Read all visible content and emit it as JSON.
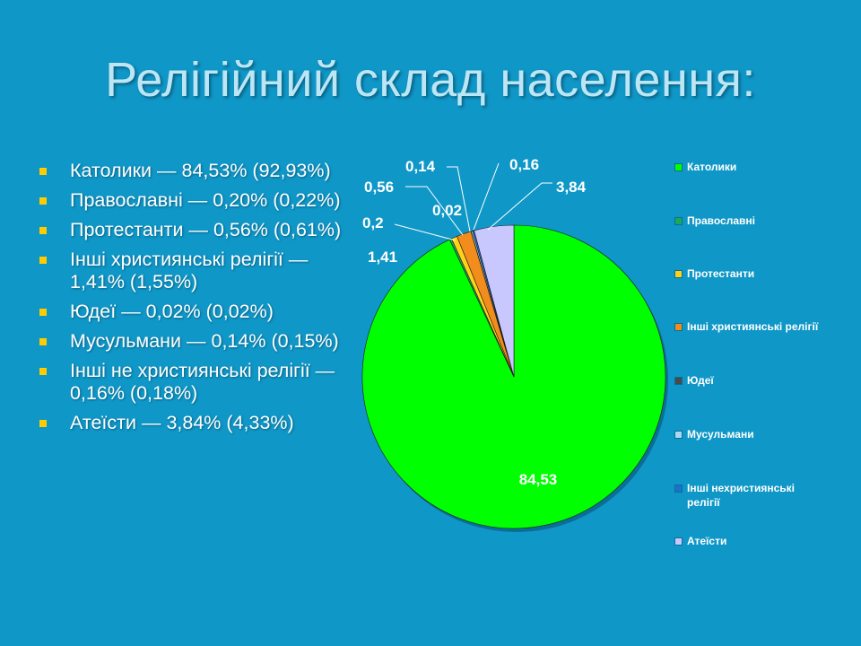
{
  "slide": {
    "title": "Релігійний склад населення:",
    "bullets": [
      "Католики — 84,53% (92,93%)",
      "Православні — 0,20% (0,22%)",
      "Протестанти — 0,56% (0,61%)",
      "Інші християнські релігії — 1,41% (1,55%)",
      "Юдеї — 0,02% (0,02%)",
      "Мусульмани — 0,14% (0,15%)",
      "Інші не християнські релігії — 0,16% (0,18%)",
      "Атеїсти — 3,84% (4,33%)"
    ]
  },
  "colors": {
    "background": "#0f97c7",
    "title": "#bde6f5",
    "bullet_marker": "#ffcc00"
  },
  "chart_data": {
    "type": "pie",
    "title": "",
    "legend_position": "right",
    "start_angle_deg": 0,
    "direction": "clockwise",
    "slices": [
      {
        "name": "Католики",
        "value": 84.53,
        "label": "84,53",
        "color": "#00ff00"
      },
      {
        "name": "Православні",
        "value": 0.2,
        "label": "0,2",
        "color": "#1aa85a"
      },
      {
        "name": "Протестанти",
        "value": 0.56,
        "label": "0,56",
        "color": "#ffd21a"
      },
      {
        "name": "Інші християнські релігії",
        "value": 1.41,
        "label": "1,41",
        "color": "#f28c1c"
      },
      {
        "name": "Юдеї",
        "value": 0.02,
        "label": "0,02",
        "color": "#4a4a4a"
      },
      {
        "name": "Мусульмани",
        "value": 0.14,
        "label": "0,14",
        "color": "#a9d8f0"
      },
      {
        "name": "Інші нехристиянські релігії",
        "value": 0.16,
        "label": "0,16",
        "color": "#1e6fd0"
      },
      {
        "name": "Атеїсти",
        "value": 3.84,
        "label": "3,84",
        "color": "#c8c8ff"
      }
    ]
  }
}
